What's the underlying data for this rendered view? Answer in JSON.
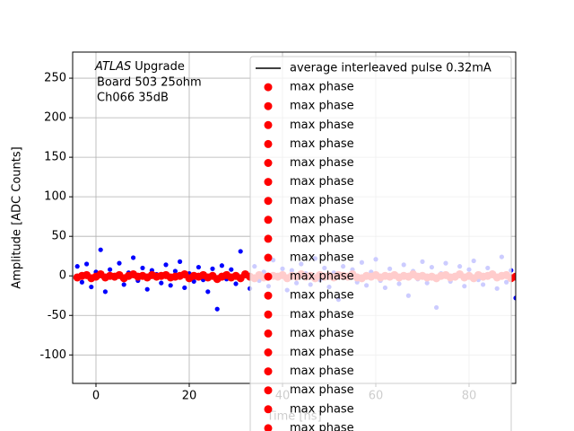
{
  "chart_data": {
    "type": "scatter",
    "experiment": "ATLAS",
    "experiment_suffix": "Upgrade",
    "annotation_lines": [
      "Board 503 25ohm",
      "Ch066 35dB"
    ],
    "xlabel": "Time [ns]",
    "ylabel": "Amplitude [ADC Counts]",
    "xlim": [
      -5,
      90
    ],
    "ylim": [
      -136,
      283
    ],
    "xticks": [
      0,
      20,
      40,
      60,
      80
    ],
    "yticks": [
      -100,
      -50,
      0,
      50,
      100,
      150,
      200,
      250
    ],
    "grid": true,
    "legend": "upper right",
    "points": {
      "color": "#0000ff",
      "x": [
        -4,
        -3,
        -2,
        -1,
        0,
        1,
        2,
        3,
        4,
        5,
        6,
        7,
        8,
        9,
        10,
        11,
        12,
        13,
        14,
        15,
        16,
        17,
        18,
        19,
        20,
        21,
        22,
        23,
        24,
        25,
        26,
        27,
        28,
        29,
        30,
        31,
        32,
        33,
        34,
        35,
        36,
        37,
        38,
        39,
        40,
        41,
        42,
        43,
        44,
        45,
        46,
        47,
        48,
        49,
        50,
        51,
        52,
        53,
        54,
        55,
        56,
        57,
        58,
        59,
        60,
        61,
        62,
        63,
        64,
        65,
        66,
        67,
        68,
        69,
        70,
        71,
        72,
        73,
        74,
        75,
        76,
        77,
        78,
        79,
        80,
        81,
        82,
        83,
        84,
        85,
        86,
        87,
        88,
        89,
        90
      ],
      "values": [
        12,
        -8,
        15,
        -14,
        5,
        33,
        -20,
        8,
        -3,
        16,
        -11,
        4,
        23,
        -6,
        10,
        -17,
        7,
        2,
        -9,
        14,
        -12,
        6,
        18,
        -15,
        3,
        -7,
        11,
        -5,
        -20,
        9,
        -42,
        13,
        -4,
        8,
        -10,
        31,
        2,
        -16,
        12,
        -6,
        5,
        -13,
        20,
        -2,
        9,
        -18,
        7,
        -9,
        15,
        3,
        -11,
        22,
        -5,
        10,
        -14,
        4,
        -30,
        12,
        -3,
        8,
        -8,
        17,
        -12,
        5,
        21,
        -6,
        -15,
        9,
        2,
        -10,
        14,
        -25,
        6,
        -4,
        18,
        -9,
        11,
        -40,
        3,
        16,
        -7,
        -2,
        12,
        -13,
        8,
        19,
        -5,
        -11,
        10,
        4,
        -16,
        24,
        -8,
        7,
        -28
      ]
    },
    "series": [
      {
        "name": "average interleaved pulse 0.32mA",
        "color": "#000000",
        "style": "line",
        "x": [
          -4,
          20,
          40,
          60,
          90
        ],
        "values": [
          0,
          0,
          0,
          0,
          0
        ]
      },
      {
        "name": "max phase",
        "color": "#ff0000",
        "x": [
          -4,
          15,
          34,
          53,
          72
        ],
        "values": [
          -2,
          1,
          -3,
          0,
          -1
        ]
      },
      {
        "name": "max phase",
        "color": "#ff0000",
        "x": [
          -3,
          16,
          35,
          54,
          73
        ],
        "values": [
          0,
          -2,
          1,
          -1,
          -3
        ]
      },
      {
        "name": "max phase",
        "color": "#ff0000",
        "x": [
          -2,
          17,
          36,
          55,
          74
        ],
        "values": [
          1,
          -1,
          -2,
          2,
          0
        ]
      },
      {
        "name": "max phase",
        "color": "#ff0000",
        "x": [
          -1,
          18,
          37,
          56,
          75
        ],
        "values": [
          -3,
          0,
          -1,
          -2,
          1
        ]
      },
      {
        "name": "max phase",
        "color": "#ff0000",
        "x": [
          0,
          19,
          38,
          57,
          76
        ],
        "values": [
          -1,
          2,
          0,
          -3,
          -2
        ]
      },
      {
        "name": "max phase",
        "color": "#ff0000",
        "x": [
          1,
          20,
          39,
          58,
          77
        ],
        "values": [
          2,
          -3,
          -1,
          0,
          -1
        ]
      },
      {
        "name": "max phase",
        "color": "#ff0000",
        "x": [
          2,
          21,
          40,
          59,
          78
        ],
        "values": [
          -2,
          0,
          1,
          -1,
          2
        ]
      },
      {
        "name": "max phase",
        "color": "#ff0000",
        "x": [
          3,
          22,
          41,
          60,
          79
        ],
        "values": [
          0,
          -1,
          -3,
          1,
          -2
        ]
      },
      {
        "name": "max phase",
        "color": "#ff0000",
        "x": [
          4,
          23,
          42,
          61,
          80
        ],
        "values": [
          -1,
          1,
          0,
          -2,
          0
        ]
      },
      {
        "name": "max phase",
        "color": "#ff0000",
        "x": [
          5,
          24,
          43,
          62,
          81
        ],
        "values": [
          1,
          -2,
          -1,
          0,
          -3
        ]
      },
      {
        "name": "max phase",
        "color": "#ff0000",
        "x": [
          6,
          25,
          44,
          63,
          82
        ],
        "values": [
          -3,
          0,
          2,
          -1,
          1
        ]
      },
      {
        "name": "max phase",
        "color": "#ff0000",
        "x": [
          7,
          26,
          45,
          64,
          83
        ],
        "values": [
          0,
          -4,
          -1,
          1,
          -1
        ]
      },
      {
        "name": "max phase",
        "color": "#ff0000",
        "x": [
          8,
          27,
          46,
          65,
          84
        ],
        "values": [
          2,
          -1,
          0,
          -2,
          0
        ]
      },
      {
        "name": "max phase",
        "color": "#ff0000",
        "x": [
          9,
          28,
          47,
          66,
          85
        ],
        "values": [
          -1,
          1,
          -3,
          0,
          2
        ]
      },
      {
        "name": "max phase",
        "color": "#ff0000",
        "x": [
          10,
          29,
          48,
          67,
          86
        ],
        "values": [
          0,
          -2,
          1,
          -1,
          -2
        ]
      },
      {
        "name": "max phase",
        "color": "#ff0000",
        "x": [
          11,
          30,
          49,
          68,
          87
        ],
        "values": [
          -2,
          0,
          -1,
          2,
          0
        ]
      },
      {
        "name": "max phase",
        "color": "#ff0000",
        "x": [
          12,
          31,
          50,
          69,
          88
        ],
        "values": [
          1,
          -3,
          0,
          -1,
          1
        ]
      },
      {
        "name": "max phase",
        "color": "#ff0000",
        "x": [
          13,
          32,
          51,
          70,
          89
        ],
        "values": [
          -1,
          2,
          -2,
          0,
          -3
        ]
      },
      {
        "name": "max phase",
        "color": "#ff0000",
        "x": [
          14,
          33,
          52,
          71,
          90
        ],
        "values": [
          0,
          -1,
          1,
          -2,
          -1
        ]
      }
    ]
  }
}
